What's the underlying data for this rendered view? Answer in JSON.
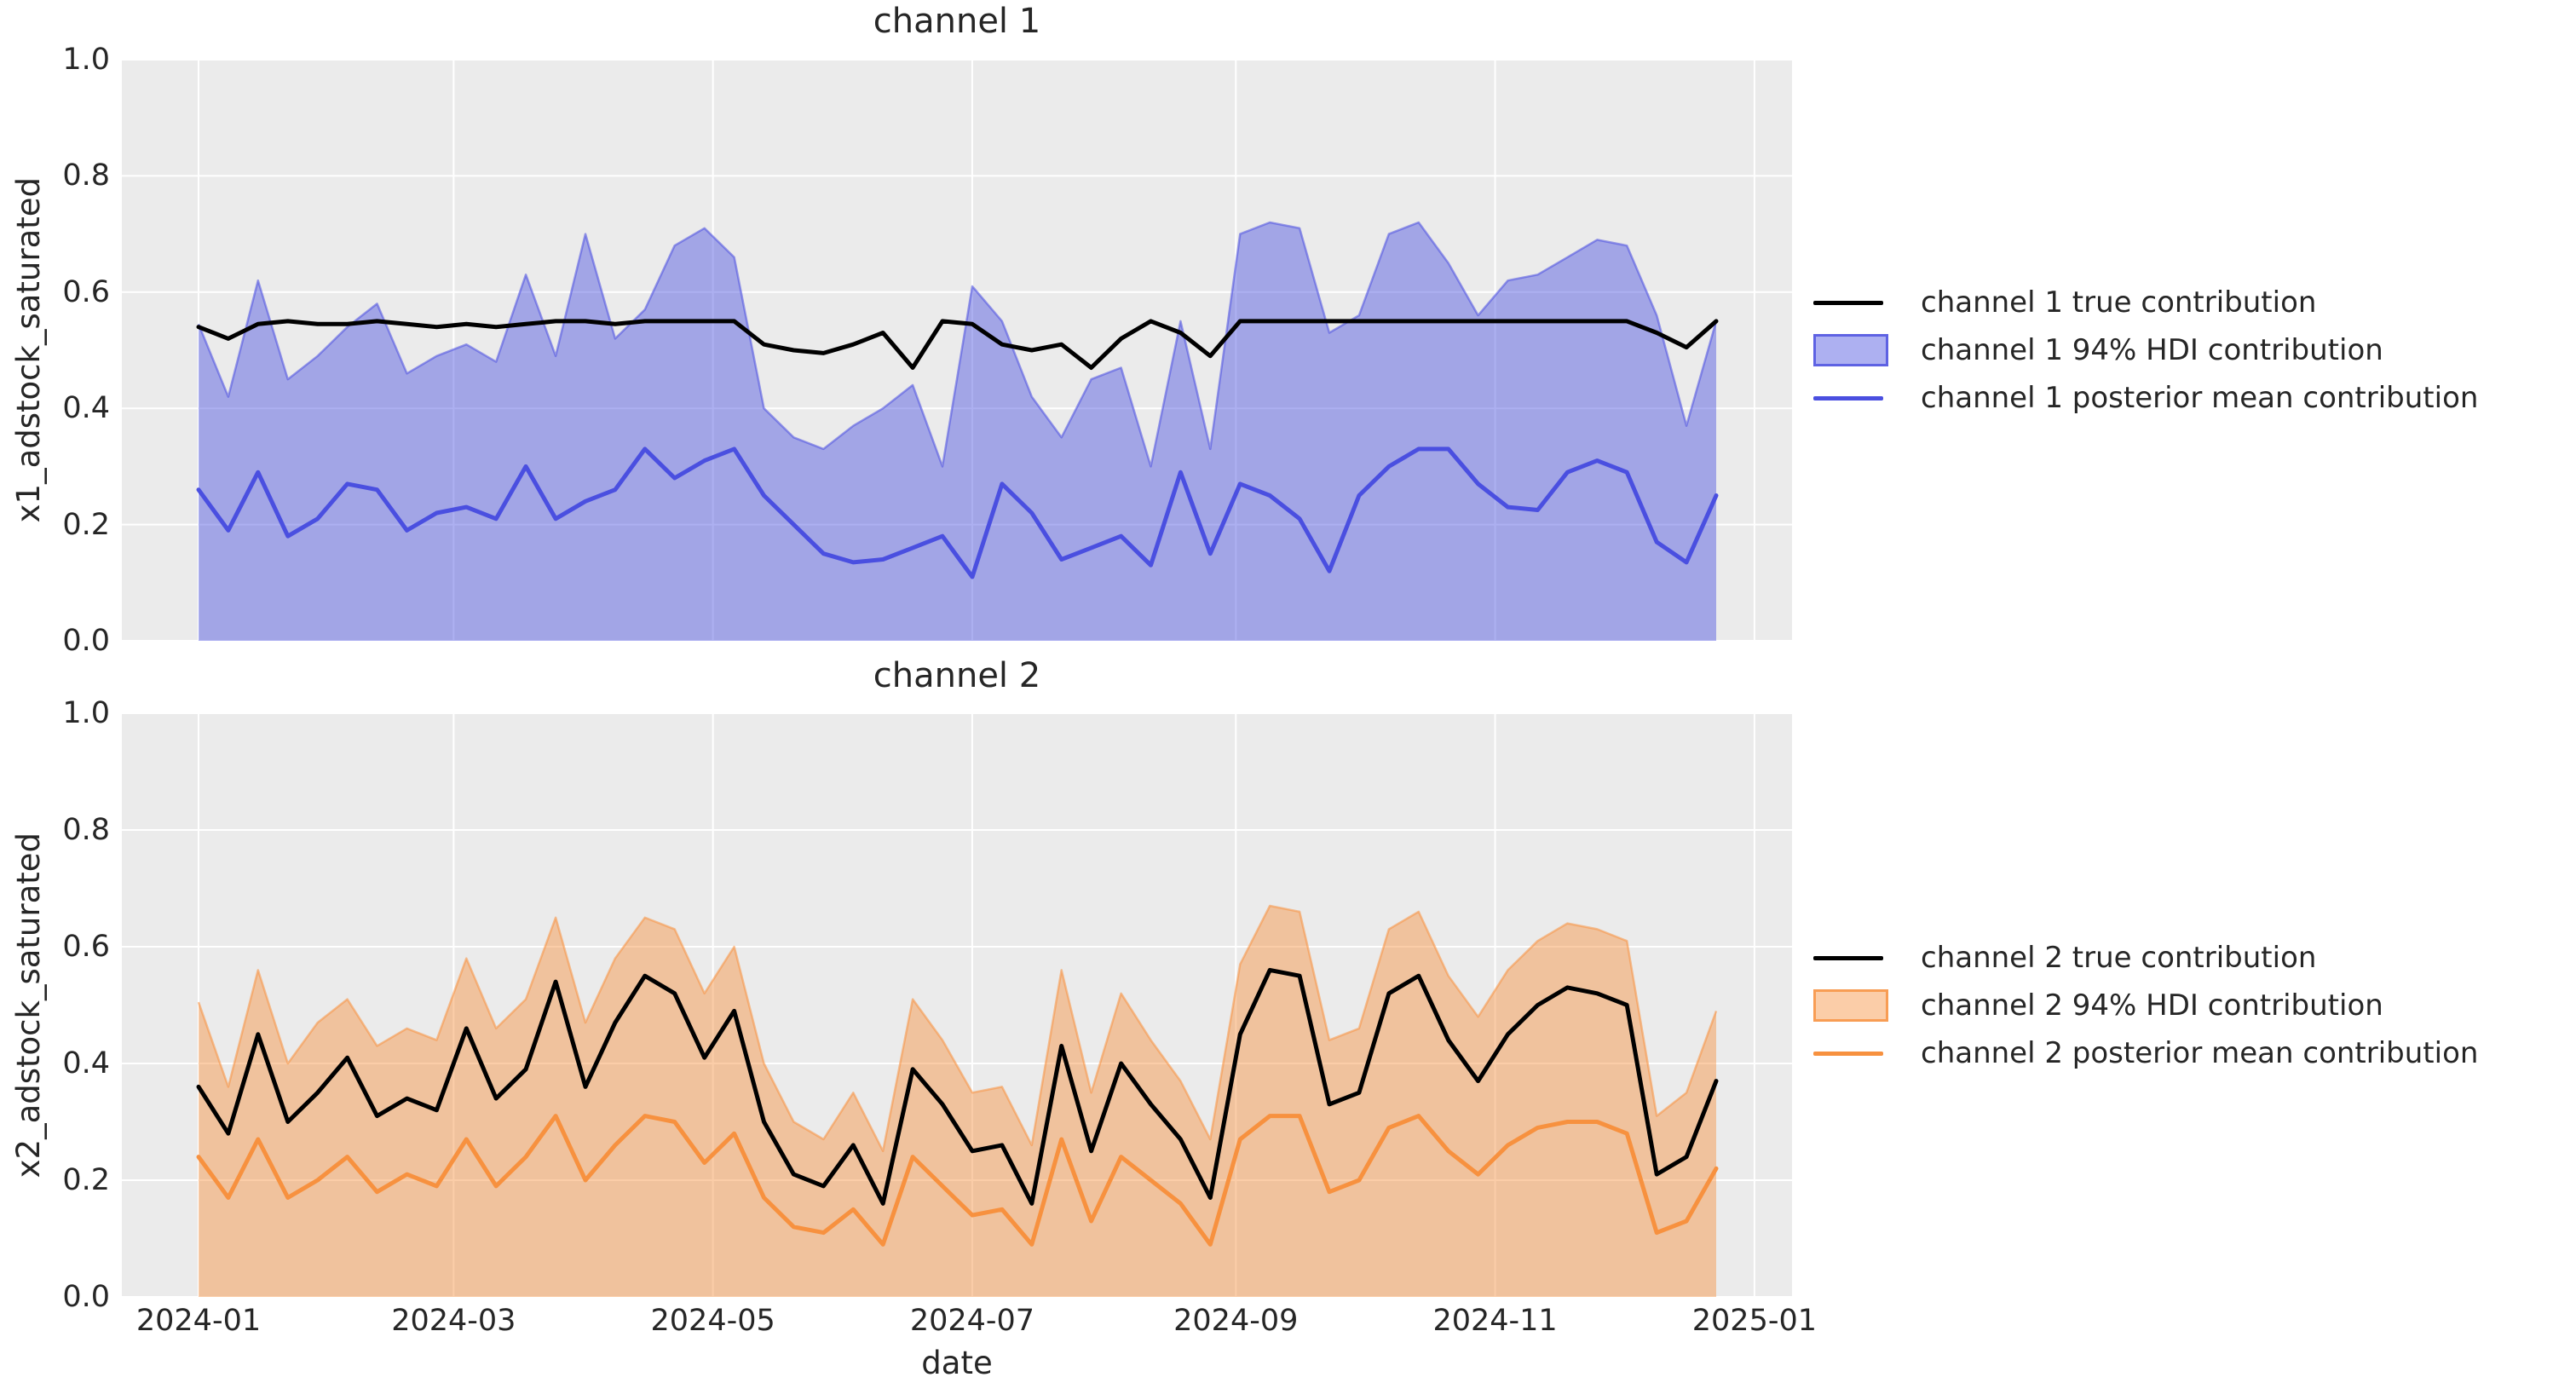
{
  "colors": {
    "page_bg": "#ffffff",
    "plot_bg": "#ebebeb",
    "grid": "#ffffff",
    "text": "#262626",
    "true_line": "#000000",
    "ch1_line": "#4a4fe0",
    "ch2_line": "#f7913f",
    "band_alpha": 0.45,
    "band_edge_alpha": 0.55
  },
  "axis": {
    "xlabel": "date",
    "x_tick_labels": [
      "2024-01",
      "2024-03",
      "2024-05",
      "2024-07",
      "2024-09",
      "2024-11",
      "2025-01"
    ],
    "y_tick_labels": [
      "0.0",
      "0.2",
      "0.4",
      "0.6",
      "0.8",
      "1.0"
    ]
  },
  "charts": [
    {
      "title": "channel 1",
      "ylabel": "x1_adstock_saturated",
      "legend": [
        {
          "label": "channel 1 true contribution",
          "glyph": "line",
          "color": "#000000"
        },
        {
          "label": "channel 1 94% HDI contribution",
          "glyph": "patch",
          "color": "#4a4fe0"
        },
        {
          "label": "channel 1 posterior mean contribution",
          "glyph": "line",
          "color": "#4a4fe0"
        }
      ]
    },
    {
      "title": "channel 2",
      "ylabel": "x2_adstock_saturated",
      "legend": [
        {
          "label": "channel 2 true contribution",
          "glyph": "line",
          "color": "#000000"
        },
        {
          "label": "channel 2 94% HDI contribution",
          "glyph": "patch",
          "color": "#f7913f"
        },
        {
          "label": "channel 2 posterior mean contribution",
          "glyph": "line",
          "color": "#f7913f"
        }
      ]
    }
  ],
  "chart_data": [
    {
      "type": "area",
      "title": "channel 1",
      "xlabel": "date",
      "ylabel": "x1_adstock_saturated",
      "ylim": [
        0.0,
        1.0
      ],
      "grid": true,
      "legend_position": "center right outside axes",
      "x_start_date": "2024-01-01",
      "x_step_days": 7,
      "n_points": 52,
      "x_tick_labels": [
        "2024-01",
        "2024-03",
        "2024-05",
        "2024-07",
        "2024-09",
        "2024-11",
        "2025-01"
      ],
      "y_tick_labels": [
        "0.0",
        "0.2",
        "0.4",
        "0.6",
        "0.8",
        "1.0"
      ],
      "hdi_lower": 0.0,
      "series": [
        {
          "name": "channel 1 true contribution",
          "style": "line",
          "color": "#000000",
          "values": [
            0.54,
            0.52,
            0.545,
            0.55,
            0.545,
            0.545,
            0.55,
            0.545,
            0.54,
            0.545,
            0.54,
            0.545,
            0.55,
            0.55,
            0.545,
            0.55,
            0.55,
            0.55,
            0.55,
            0.51,
            0.5,
            0.495,
            0.51,
            0.53,
            0.47,
            0.55,
            0.545,
            0.51,
            0.5,
            0.51,
            0.47,
            0.52,
            0.55,
            0.53,
            0.49,
            0.55,
            0.55,
            0.55,
            0.55,
            0.55,
            0.55,
            0.55,
            0.55,
            0.55,
            0.55,
            0.55,
            0.55,
            0.55,
            0.55,
            0.53,
            0.505,
            0.55
          ]
        },
        {
          "name": "channel 1 94% HDI contribution (upper bound)",
          "style": "band-upper",
          "color": "#4a4fe0",
          "values": [
            0.545,
            0.42,
            0.62,
            0.45,
            0.49,
            0.54,
            0.58,
            0.46,
            0.49,
            0.51,
            0.48,
            0.63,
            0.49,
            0.7,
            0.52,
            0.57,
            0.68,
            0.71,
            0.66,
            0.4,
            0.35,
            0.33,
            0.37,
            0.4,
            0.44,
            0.3,
            0.61,
            0.55,
            0.42,
            0.35,
            0.45,
            0.47,
            0.3,
            0.55,
            0.33,
            0.7,
            0.72,
            0.71,
            0.53,
            0.56,
            0.7,
            0.72,
            0.65,
            0.56,
            0.62,
            0.63,
            0.66,
            0.69,
            0.68,
            0.56,
            0.37,
            0.55
          ]
        },
        {
          "name": "channel 1 posterior mean contribution",
          "style": "line",
          "color": "#4a4fe0",
          "values": [
            0.26,
            0.19,
            0.29,
            0.18,
            0.21,
            0.27,
            0.26,
            0.19,
            0.22,
            0.23,
            0.21,
            0.3,
            0.21,
            0.24,
            0.26,
            0.33,
            0.28,
            0.31,
            0.33,
            0.25,
            0.2,
            0.15,
            0.135,
            0.14,
            0.16,
            0.18,
            0.11,
            0.27,
            0.22,
            0.14,
            0.16,
            0.18,
            0.13,
            0.29,
            0.15,
            0.27,
            0.25,
            0.21,
            0.12,
            0.25,
            0.3,
            0.33,
            0.33,
            0.27,
            0.23,
            0.225,
            0.29,
            0.31,
            0.29,
            0.17,
            0.135,
            0.25
          ]
        }
      ]
    },
    {
      "type": "area",
      "title": "channel 2",
      "xlabel": "date",
      "ylabel": "x2_adstock_saturated",
      "ylim": [
        0.0,
        1.0
      ],
      "grid": true,
      "legend_position": "center right outside axes",
      "x_start_date": "2024-01-01",
      "x_step_days": 7,
      "n_points": 52,
      "x_tick_labels": [
        "2024-01",
        "2024-03",
        "2024-05",
        "2024-07",
        "2024-09",
        "2024-11",
        "2025-01"
      ],
      "y_tick_labels": [
        "0.0",
        "0.2",
        "0.4",
        "0.6",
        "0.8",
        "1.0"
      ],
      "hdi_lower": 0.0,
      "series": [
        {
          "name": "channel 2 true contribution",
          "style": "line",
          "color": "#000000",
          "values": [
            0.36,
            0.28,
            0.45,
            0.3,
            0.35,
            0.41,
            0.31,
            0.34,
            0.32,
            0.46,
            0.34,
            0.39,
            0.54,
            0.36,
            0.47,
            0.55,
            0.52,
            0.41,
            0.49,
            0.3,
            0.21,
            0.19,
            0.26,
            0.16,
            0.39,
            0.33,
            0.25,
            0.26,
            0.16,
            0.43,
            0.25,
            0.4,
            0.33,
            0.27,
            0.17,
            0.45,
            0.56,
            0.55,
            0.33,
            0.35,
            0.52,
            0.55,
            0.44,
            0.37,
            0.45,
            0.5,
            0.53,
            0.52,
            0.5,
            0.21,
            0.24,
            0.37
          ]
        },
        {
          "name": "channel 2 94% HDI contribution (upper bound)",
          "style": "band-upper",
          "color": "#f7913f",
          "values": [
            0.505,
            0.36,
            0.56,
            0.4,
            0.47,
            0.51,
            0.43,
            0.46,
            0.44,
            0.58,
            0.46,
            0.51,
            0.65,
            0.47,
            0.58,
            0.65,
            0.63,
            0.52,
            0.6,
            0.4,
            0.3,
            0.27,
            0.35,
            0.25,
            0.51,
            0.44,
            0.35,
            0.36,
            0.26,
            0.56,
            0.35,
            0.52,
            0.44,
            0.37,
            0.27,
            0.57,
            0.67,
            0.66,
            0.44,
            0.46,
            0.63,
            0.66,
            0.55,
            0.48,
            0.56,
            0.61,
            0.64,
            0.63,
            0.61,
            0.31,
            0.35,
            0.49
          ]
        },
        {
          "name": "channel 2 posterior mean contribution",
          "style": "line",
          "color": "#f7913f",
          "values": [
            0.24,
            0.17,
            0.27,
            0.17,
            0.2,
            0.24,
            0.18,
            0.21,
            0.19,
            0.27,
            0.19,
            0.24,
            0.31,
            0.2,
            0.26,
            0.31,
            0.3,
            0.23,
            0.28,
            0.17,
            0.12,
            0.11,
            0.15,
            0.09,
            0.24,
            0.19,
            0.14,
            0.15,
            0.09,
            0.27,
            0.13,
            0.24,
            0.2,
            0.16,
            0.09,
            0.27,
            0.31,
            0.31,
            0.18,
            0.2,
            0.29,
            0.31,
            0.25,
            0.21,
            0.26,
            0.29,
            0.3,
            0.3,
            0.28,
            0.11,
            0.13,
            0.22
          ]
        }
      ]
    }
  ]
}
